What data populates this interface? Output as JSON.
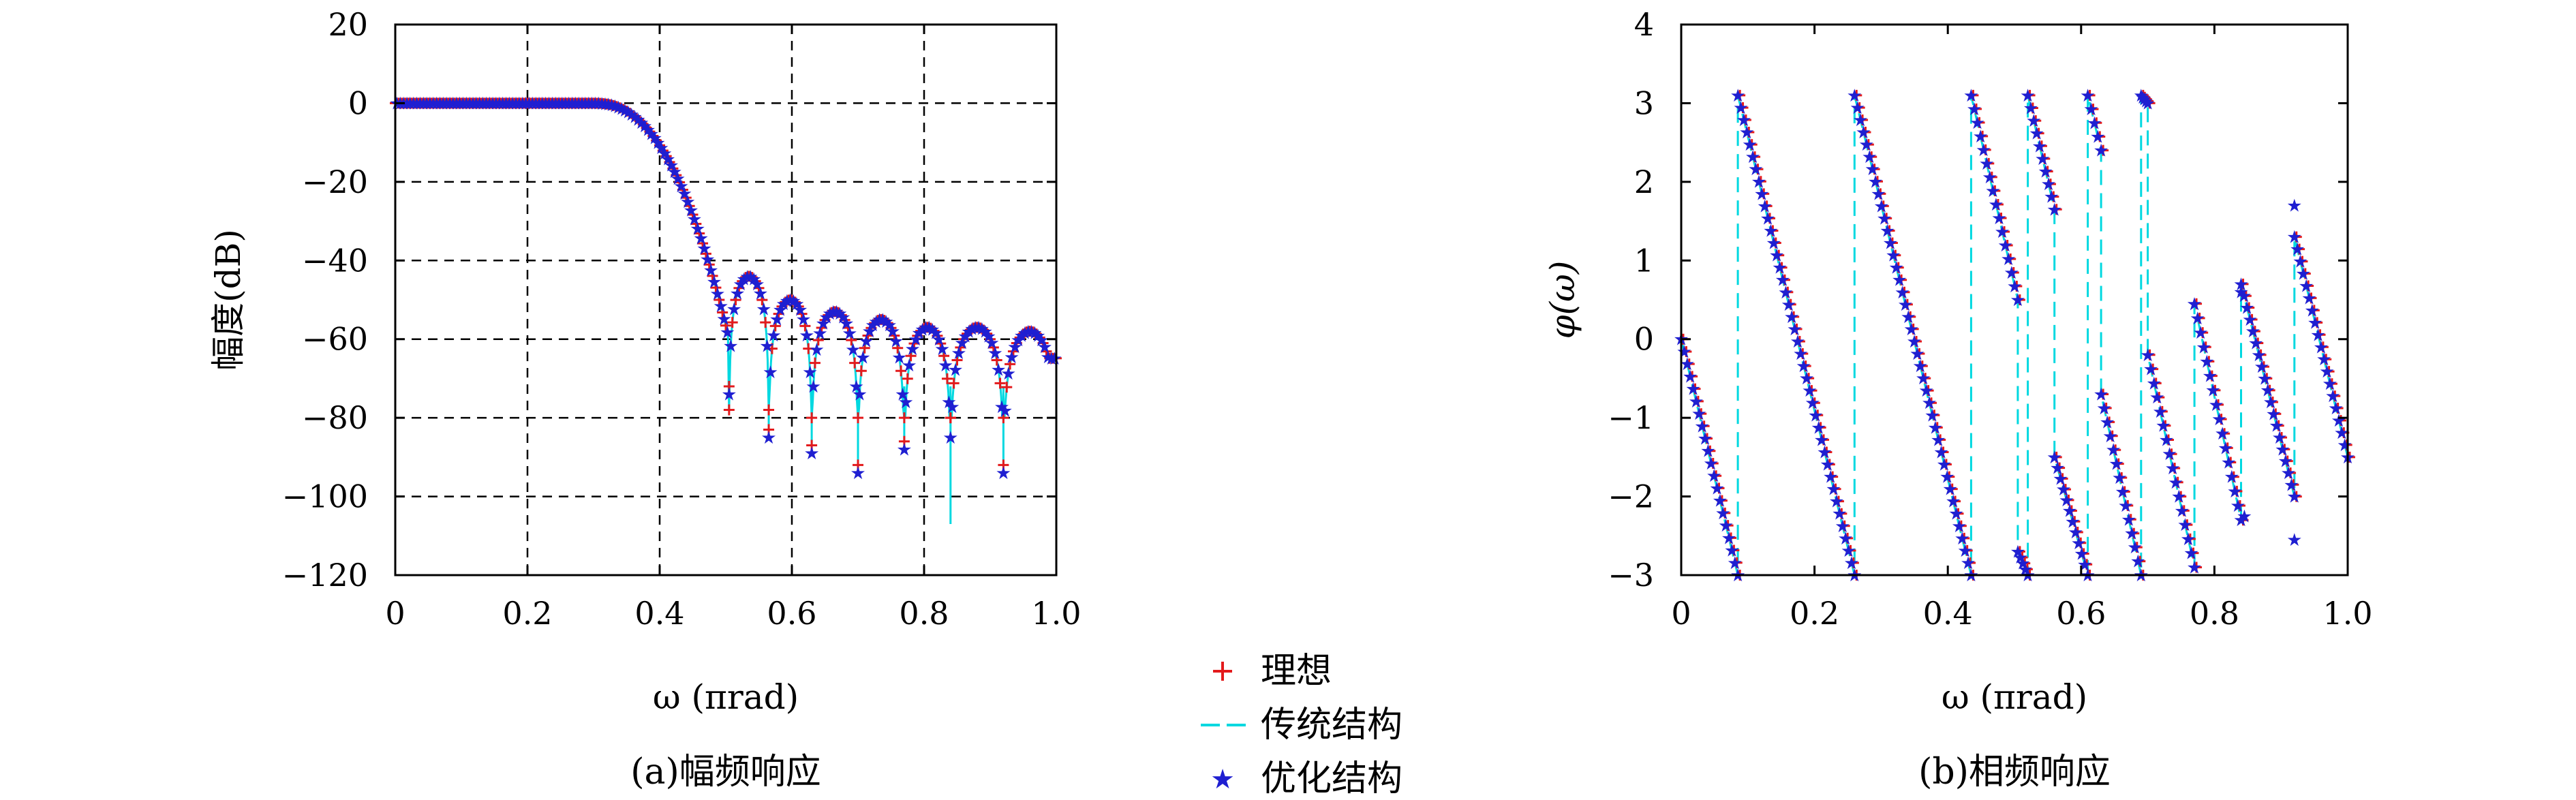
{
  "colors": {
    "ideal": "#e31a1c",
    "traditional": "#00d8e0",
    "optimized": "#1f1fd1",
    "grid": "#000000"
  },
  "legend": {
    "items": [
      {
        "label": "理想",
        "marker": "plus",
        "color": "#e31a1c"
      },
      {
        "label": "传统结构",
        "marker": "dash",
        "color": "#00d8e0"
      },
      {
        "label": "优化结构",
        "marker": "star",
        "color": "#1f1fd1"
      }
    ]
  },
  "chart_data": [
    {
      "type": "line",
      "caption": "(a)幅频响应",
      "xlabel": "ω (πrad)",
      "ylabel": "幅度(dB)",
      "xlim": [
        0,
        1.0
      ],
      "ylim": [
        -120,
        20
      ],
      "xticks": [
        "0",
        "0.2",
        "0.4",
        "0.6",
        "0.8",
        "1.0"
      ],
      "yticks": [
        "20",
        "0",
        "−20",
        "−40",
        "−60",
        "−80",
        "−100",
        "−120"
      ],
      "grid": "dashed",
      "series": [
        {
          "name": "理想",
          "marker": "plus"
        },
        {
          "name": "传统结构",
          "marker": "dash"
        },
        {
          "name": "优化结构",
          "marker": "star"
        }
      ],
      "key_points": {
        "passband_end": 0.3,
        "sidelobe_peaks_x": [
          0.535,
          0.6,
          0.665,
          0.735,
          0.8,
          0.87,
          0.95
        ],
        "sidelobe_peaks_db": [
          -44,
          -50,
          -53,
          -55,
          -57,
          -57,
          -58
        ],
        "nulls_x": [
          0.505,
          0.565,
          0.63,
          0.7,
          0.77,
          0.84,
          0.92
        ],
        "nulls_db": [
          -72,
          -83,
          -87,
          -92,
          -86,
          -107,
          -92
        ]
      }
    },
    {
      "type": "line",
      "caption": "(b)相频响应",
      "xlabel": "ω (πrad)",
      "ylabel": "φ(ω)",
      "xlim": [
        0,
        1.0
      ],
      "ylim": [
        -3,
        4
      ],
      "xticks": [
        "0",
        "0.2",
        "0.4",
        "0.6",
        "0.8",
        "1.0"
      ],
      "yticks": [
        "4",
        "3",
        "2",
        "1",
        "0",
        "−1",
        "−2",
        "−3"
      ],
      "grid": "none",
      "series": [
        {
          "name": "理想",
          "marker": "plus"
        },
        {
          "name": "传统结构",
          "marker": "dash"
        },
        {
          "name": "优化结构",
          "marker": "star"
        }
      ],
      "segments": [
        {
          "x": [
            0.0,
            0.085
          ],
          "y": [
            0.0,
            -3.0
          ]
        },
        {
          "x": [
            0.085,
            0.26
          ],
          "y": [
            3.1,
            -3.0
          ]
        },
        {
          "x": [
            0.26,
            0.435
          ],
          "y": [
            3.1,
            -3.0
          ]
        },
        {
          "x": [
            0.435,
            0.505
          ],
          "y": [
            3.1,
            0.5
          ]
        },
        {
          "x": [
            0.505,
            0.52
          ],
          "y": [
            -2.7,
            -3.0
          ]
        },
        {
          "x": [
            0.52,
            0.56
          ],
          "y": [
            3.1,
            1.65
          ]
        },
        {
          "x": [
            0.56,
            0.61
          ],
          "y": [
            -1.5,
            -3.0
          ]
        },
        {
          "x": [
            0.61,
            0.63
          ],
          "y": [
            3.1,
            2.4
          ]
        },
        {
          "x": [
            0.63,
            0.69
          ],
          "y": [
            -0.7,
            -3.0
          ]
        },
        {
          "x": [
            0.69,
            0.7
          ],
          "y": [
            3.1,
            3.0
          ]
        },
        {
          "x": [
            0.7,
            0.77
          ],
          "y": [
            -0.2,
            -2.9
          ]
        },
        {
          "x": [
            0.77,
            0.84
          ],
          "y": [
            0.45,
            -2.3
          ]
        },
        {
          "x": [
            0.84,
            0.92
          ],
          "y": [
            0.7,
            -2.0
          ]
        },
        {
          "x": [
            0.92,
            1.0
          ],
          "y": [
            1.3,
            -1.5
          ]
        }
      ]
    }
  ]
}
